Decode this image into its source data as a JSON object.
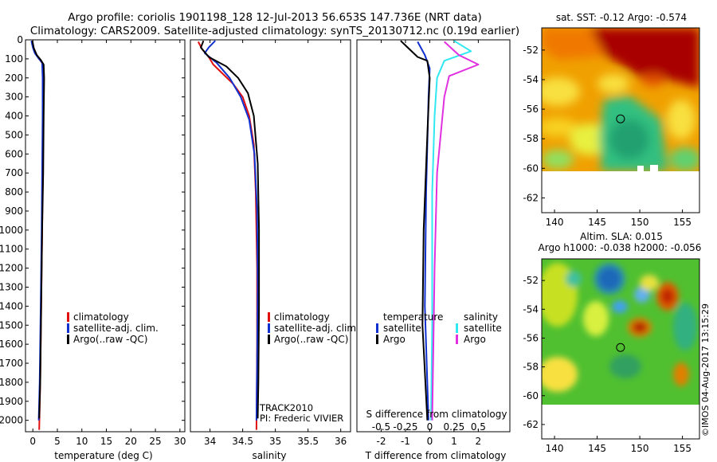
{
  "header": {
    "line1": "Argo profile: coriolis 1901198_128 12-Jul-2013 56.653S 147.736E (NRT data)",
    "line2": "Climatology: CARS2009. Satellite-adjusted climatology: synTS_20130712.nc (0.19d earlier)"
  },
  "colors": {
    "climatology": "#e01010",
    "satellite": "#1030d0",
    "argo": "#000000",
    "salinity_satellite": "#30e8f0",
    "salinity_argo": "#e030e0"
  },
  "chart_data": [
    {
      "id": "temperature",
      "type": "line",
      "xlabel": "temperature (deg C)",
      "ylim": [
        2060,
        0
      ],
      "xlim": [
        -1.5,
        31
      ],
      "yticks": [
        0,
        100,
        200,
        300,
        400,
        500,
        600,
        700,
        800,
        900,
        1000,
        1100,
        1200,
        1300,
        1400,
        1500,
        1600,
        1700,
        1800,
        1900,
        2000
      ],
      "xticks": [
        "0",
        "5",
        "10",
        "15",
        "20",
        "25",
        "30"
      ],
      "xtick_values": [
        0,
        5,
        10,
        15,
        20,
        25,
        30
      ],
      "legend": [
        "climatology",
        "satellite-adj. clim.",
        "Argo(..raw -QC)"
      ],
      "series": [
        {
          "name": "climatology",
          "color": "#e01010",
          "points": [
            [
              -0.2,
              5
            ],
            [
              0.1,
              40
            ],
            [
              0.6,
              75
            ],
            [
              1.3,
              100
            ],
            [
              2.0,
              125
            ],
            [
              2.1,
              200
            ],
            [
              2.1,
              400
            ],
            [
              2.0,
              700
            ],
            [
              1.9,
              1000
            ],
            [
              1.7,
              1400
            ],
            [
              1.5,
              1800
            ],
            [
              1.3,
              2050
            ]
          ]
        },
        {
          "name": "satellite",
          "color": "#1030d0",
          "points": [
            [
              -0.3,
              5
            ],
            [
              0.0,
              40
            ],
            [
              0.4,
              70
            ],
            [
              1.1,
              95
            ],
            [
              1.9,
              120
            ],
            [
              2.0,
              200
            ],
            [
              2.0,
              400
            ],
            [
              1.9,
              700
            ],
            [
              1.8,
              1000
            ],
            [
              1.6,
              1400
            ],
            [
              1.4,
              1800
            ],
            [
              1.2,
              2000
            ]
          ]
        },
        {
          "name": "Argo",
          "color": "#000000",
          "points": [
            [
              -0.1,
              5
            ],
            [
              0.2,
              45
            ],
            [
              0.8,
              80
            ],
            [
              1.6,
              105
            ],
            [
              2.2,
              130
            ],
            [
              2.3,
              200
            ],
            [
              2.2,
              400
            ],
            [
              2.1,
              700
            ],
            [
              1.9,
              1000
            ],
            [
              1.7,
              1400
            ],
            [
              1.5,
              1800
            ],
            [
              1.3,
              1990
            ]
          ]
        }
      ]
    },
    {
      "id": "salinity",
      "type": "line",
      "xlabel": "salinity",
      "ylim": [
        2060,
        0
      ],
      "xlim": [
        33.7,
        36.15
      ],
      "xticks": [
        "34",
        "34.5",
        "35",
        "35.5",
        "36"
      ],
      "xtick_values": [
        34,
        34.5,
        35,
        35.5,
        36
      ],
      "legend": [
        "climatology",
        "satellite-adj. clim.",
        "Argo(..raw -QC)"
      ],
      "annotation": [
        "TRACK2010",
        "PI: Frederic VIVIER"
      ],
      "series": [
        {
          "name": "climatology",
          "color": "#e01010",
          "points": [
            [
              33.82,
              10
            ],
            [
              33.88,
              50
            ],
            [
              33.98,
              90
            ],
            [
              34.05,
              130
            ],
            [
              34.2,
              180
            ],
            [
              34.35,
              230
            ],
            [
              34.5,
              300
            ],
            [
              34.6,
              400
            ],
            [
              34.67,
              550
            ],
            [
              34.7,
              800
            ],
            [
              34.72,
              1200
            ],
            [
              34.72,
              1600
            ],
            [
              34.71,
              2050
            ]
          ]
        },
        {
          "name": "satellite",
          "color": "#1030d0",
          "points": [
            [
              34.08,
              5
            ],
            [
              33.98,
              40
            ],
            [
              33.92,
              70
            ],
            [
              34.1,
              120
            ],
            [
              34.3,
              200
            ],
            [
              34.47,
              300
            ],
            [
              34.6,
              420
            ],
            [
              34.68,
              600
            ],
            [
              34.72,
              900
            ],
            [
              34.73,
              1300
            ],
            [
              34.72,
              1700
            ],
            [
              34.71,
              2000
            ]
          ]
        },
        {
          "name": "Argo",
          "color": "#000000",
          "points": [
            [
              33.9,
              5
            ],
            [
              33.86,
              40
            ],
            [
              33.98,
              90
            ],
            [
              34.25,
              140
            ],
            [
              34.43,
              200
            ],
            [
              34.58,
              280
            ],
            [
              34.67,
              400
            ],
            [
              34.73,
              650
            ],
            [
              34.75,
              1000
            ],
            [
              34.75,
              1400
            ],
            [
              34.74,
              1800
            ],
            [
              34.73,
              1990
            ]
          ]
        }
      ]
    },
    {
      "id": "difference",
      "type": "line",
      "xlabel": "T difference from climatology",
      "top_label": "S difference from climatology",
      "ylim": [
        2060,
        0
      ],
      "xlim": [
        -3,
        3.3
      ],
      "xticks": [
        "-2",
        "-1",
        "0",
        "1",
        "2"
      ],
      "xtick_values": [
        -2,
        -1,
        0,
        1,
        2
      ],
      "top_ticks": [
        "-0.5",
        "-0.25",
        "0",
        "0.25",
        "0.5"
      ],
      "top_tick_values": [
        -2,
        -1,
        0,
        1,
        2
      ],
      "legend_temperature": [
        "temperature",
        "satellite",
        "Argo"
      ],
      "legend_salinity": [
        "salinity",
        "satellite",
        "Argo"
      ],
      "series": [
        {
          "name": "T satellite",
          "color": "#1030d0",
          "points": [
            [
              -0.5,
              10
            ],
            [
              -0.2,
              80
            ],
            [
              0.0,
              150
            ],
            [
              -0.05,
              300
            ],
            [
              -0.15,
              800
            ],
            [
              -0.2,
              1400
            ],
            [
              -0.05,
              2000
            ]
          ]
        },
        {
          "name": "T Argo",
          "color": "#000000",
          "points": [
            [
              -1.2,
              5
            ],
            [
              -0.5,
              90
            ],
            [
              -0.1,
              110
            ],
            [
              0.0,
              200
            ],
            [
              -0.1,
              500
            ],
            [
              -0.25,
              1000
            ],
            [
              -0.3,
              1500
            ],
            [
              -0.1,
              2000
            ]
          ]
        },
        {
          "name": "S satellite",
          "color": "#30e8f0",
          "points": [
            [
              1.0,
              5
            ],
            [
              1.7,
              60
            ],
            [
              0.6,
              110
            ],
            [
              0.3,
              200
            ],
            [
              0.2,
              400
            ],
            [
              0.1,
              800
            ],
            [
              0.1,
              1500
            ],
            [
              0.05,
              2000
            ]
          ]
        },
        {
          "name": "S Argo",
          "color": "#e030e0",
          "points": [
            [
              0.6,
              10
            ],
            [
              1.2,
              80
            ],
            [
              2.0,
              130
            ],
            [
              0.8,
              190
            ],
            [
              0.6,
              300
            ],
            [
              0.3,
              700
            ],
            [
              0.2,
              1200
            ],
            [
              0.1,
              2000
            ]
          ]
        }
      ]
    },
    {
      "id": "sst_map",
      "type": "heatmap",
      "title": "sat. SST: -0.12 Argo: -0.574",
      "xlim": [
        138.5,
        157
      ],
      "ylim": [
        -63,
        -50.5
      ],
      "xticks": [
        "140",
        "145",
        "150",
        "155"
      ],
      "xtick_values": [
        140,
        145,
        150,
        155
      ],
      "yticks": [
        "-52",
        "-54",
        "-56",
        "-58",
        "-60",
        "-62"
      ],
      "ytick_values": [
        -52,
        -54,
        -56,
        -58,
        -60,
        -62
      ],
      "marker": [
        147.736,
        -56.653
      ]
    },
    {
      "id": "sla_map",
      "type": "heatmap",
      "title_line1": "Altim. SLA: 0.015",
      "title_line2": "Argo h1000: -0.038 h2000: -0.056",
      "xlim": [
        138.5,
        157
      ],
      "ylim": [
        -63,
        -50.5
      ],
      "xticks": [
        "140",
        "145",
        "150",
        "155"
      ],
      "xtick_values": [
        140,
        145,
        150,
        155
      ],
      "yticks": [
        "-52",
        "-54",
        "-56",
        "-58",
        "-60",
        "-62"
      ],
      "ytick_values": [
        -52,
        -54,
        -56,
        -58,
        -60,
        -62
      ],
      "marker": [
        147.736,
        -56.653
      ]
    }
  ],
  "footer": {
    "stamp": "©IMOS 04-Aug-2017 13:15:29"
  }
}
